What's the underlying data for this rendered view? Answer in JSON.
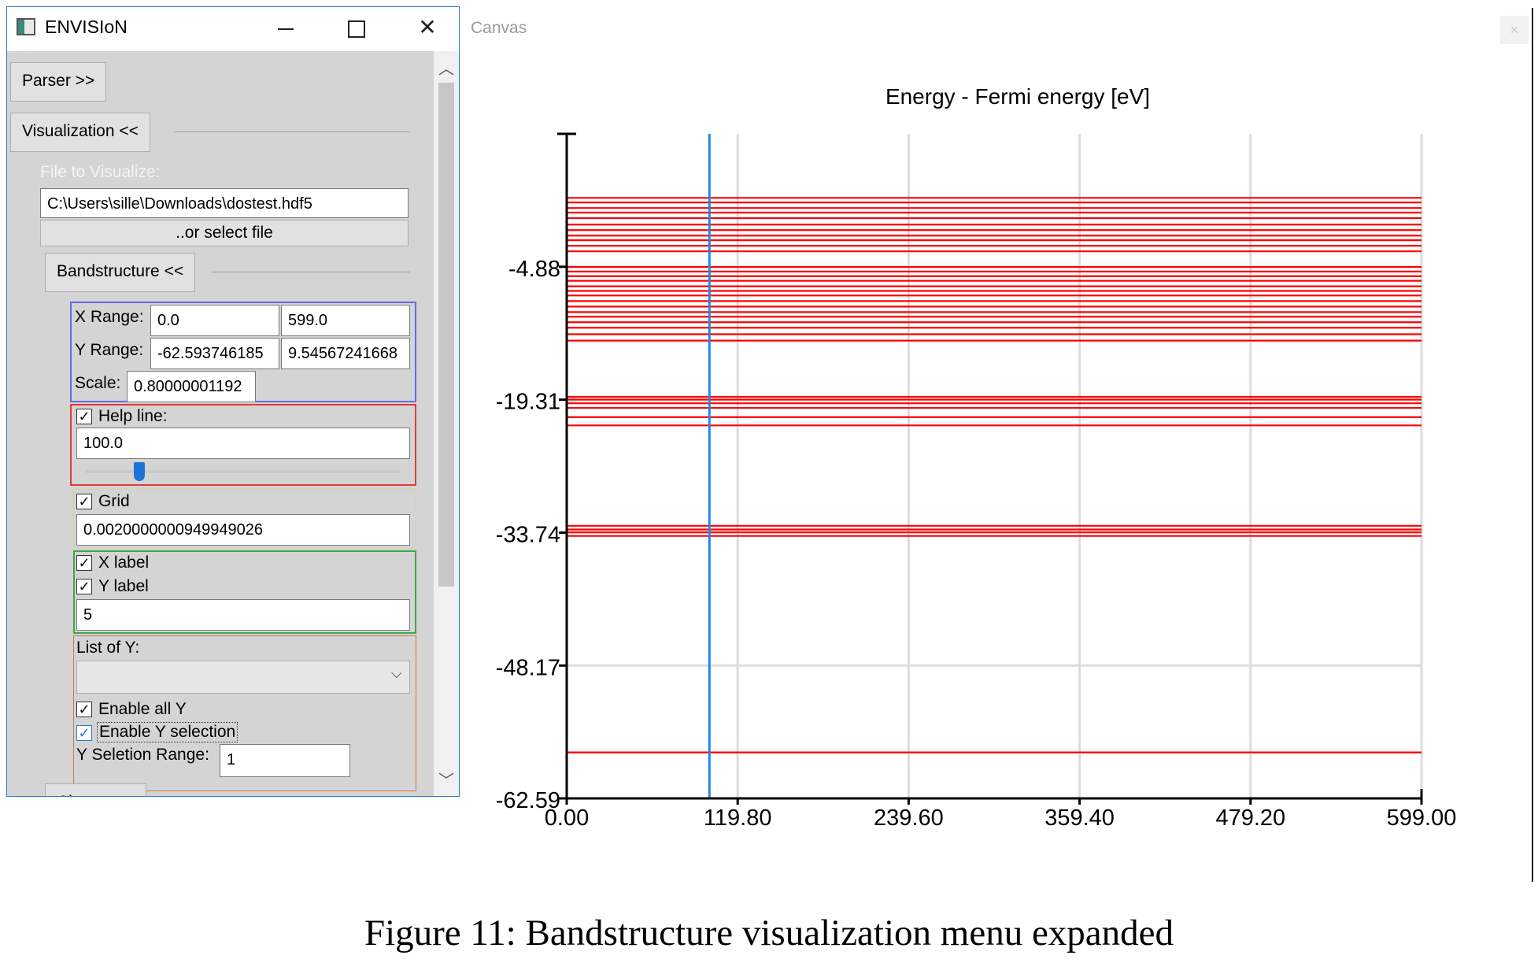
{
  "window": {
    "title": "ENVISIoN",
    "controls": {
      "minimize": "—",
      "maximize": "☐",
      "close": "✕"
    }
  },
  "sidebar": {
    "parser_button": "Parser >>",
    "visualization_button": "Visualization <<",
    "file_label": "File to Visualize:",
    "file_path": "C:\\Users\\sille\\Downloads\\dostest.hdf5",
    "select_file_button": "..or select file",
    "bandstructure_button": "Bandstructure <<",
    "x_range_label": "X Range:",
    "x_range_min": "0.0",
    "x_range_max": "599.0",
    "y_range_label": "Y Range:",
    "y_range_min": "-62.593746185",
    "y_range_max": "9.54567241668",
    "scale_label": "Scale:",
    "scale_value": "0.80000001192",
    "help_line_label": "Help line:",
    "help_line_checked": true,
    "help_line_value": "100.0",
    "help_line_slider_fraction": 0.17,
    "grid_label": "Grid",
    "grid_checked": true,
    "grid_value": "0.0020000000949949026",
    "x_label_label": "X label",
    "x_label_checked": true,
    "y_label_label": "Y label",
    "y_label_checked": true,
    "label_count_value": "5",
    "list_of_y_label": "List of Y:",
    "list_of_y_selected": "",
    "enable_all_y_label": "Enable all Y",
    "enable_all_y_checked": true,
    "enable_y_selection_label": "Enable Y selection",
    "enable_y_selection_checked": true,
    "y_selection_range_label": "Y Seletion Range:",
    "y_selection_range_value": "1",
    "charge_button": "Charge <<"
  },
  "canvas": {
    "label": "Canvas",
    "close_icon": "×"
  },
  "chart_data": {
    "type": "line",
    "title": "Energy - Fermi energy  [eV]",
    "xlim": [
      0,
      599
    ],
    "ylim": [
      -62.59,
      9.55
    ],
    "x_ticks": [
      "0.00",
      "119.80",
      "239.60",
      "359.40",
      "479.20",
      "599.00"
    ],
    "y_ticks": [
      "-4.88",
      "-19.31",
      "-33.74",
      "-48.17",
      "-62.59"
    ],
    "grid": true,
    "help_line_x": 100.0,
    "band_color": "#ff0000",
    "help_line_color": "#1e88e5",
    "bands": [
      2.6,
      2.1,
      1.5,
      1.0,
      0.4,
      -0.3,
      -0.9,
      -1.5,
      -2.0,
      -2.6,
      -3.2,
      -4.9,
      -5.4,
      -5.9,
      -6.4,
      -7.0,
      -7.5,
      -8.0,
      -8.6,
      -9.2,
      -9.8,
      -10.3,
      -10.9,
      -11.5,
      -12.2,
      -12.9,
      -19.0,
      -19.3,
      -19.7,
      -20.2,
      -21.2,
      -22.1,
      -33.0,
      -33.4,
      -33.7,
      -34.1,
      -57.6
    ]
  },
  "caption": "Figure 11: Bandstructure visualization menu expanded"
}
